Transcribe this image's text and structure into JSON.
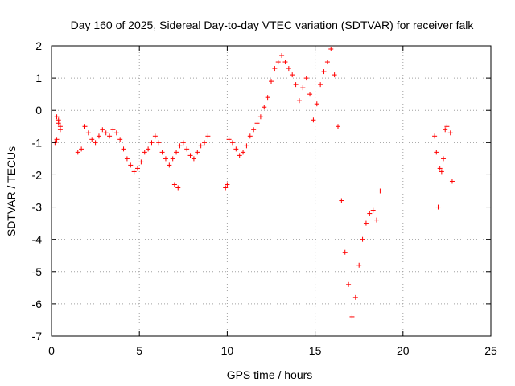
{
  "chart_data": {
    "type": "scatter",
    "title": "Day 160 of 2025, Sidereal Day-to-day VTEC variation (SDTVAR) for receiver falk",
    "xlabel": "GPS time / hours",
    "ylabel": "SDTVAR / TECUs",
    "xlim": [
      0,
      25
    ],
    "ylim": [
      -7,
      2
    ],
    "x_ticks": [
      "0",
      "5",
      "10",
      "15",
      "20",
      "25"
    ],
    "y_ticks": [
      "2",
      "1",
      "0",
      "-1",
      "-2",
      "-3",
      "-4",
      "-5",
      "-6",
      "-7"
    ],
    "grid": true,
    "marker": "+",
    "color": "#ff0000",
    "series": [
      {
        "x": [
          0.2,
          0.3,
          0.4,
          0.5,
          0.3,
          0.4,
          0.5,
          1.5,
          1.7,
          1.9,
          2.1,
          2.3,
          2.5,
          2.7,
          2.9,
          3.1,
          3.3,
          3.5,
          3.7,
          3.9,
          4.1,
          4.3,
          4.5,
          4.7,
          4.9,
          5.1,
          5.3,
          5.5,
          5.7,
          5.9,
          6.1,
          6.3,
          6.5,
          6.7,
          6.9,
          7.1,
          7.3,
          7.5,
          7.7,
          7.9,
          8.1,
          8.3,
          8.5,
          8.7,
          8.9,
          7.0,
          7.2,
          9.9,
          10.0,
          10.1,
          10.3,
          10.5,
          10.7,
          10.9,
          11.1,
          11.3,
          11.5,
          11.7,
          11.9,
          12.1,
          12.3,
          12.5,
          12.7,
          12.9,
          13.1,
          13.3,
          13.5,
          13.7,
          13.9,
          14.1,
          14.3,
          14.5,
          14.7,
          14.9,
          15.1,
          15.3,
          15.5,
          15.7,
          15.9,
          16.1,
          16.3,
          16.5,
          16.7,
          16.9,
          17.1,
          17.3,
          17.5,
          17.7,
          17.9,
          18.1,
          18.3,
          18.5,
          18.7,
          21.8,
          21.9,
          22.0,
          22.1,
          22.2,
          22.3,
          22.4,
          22.5,
          22.7,
          22.8
        ],
        "y": [
          -1.0,
          -0.2,
          -0.4,
          -0.6,
          -0.9,
          -0.3,
          -0.5,
          -1.3,
          -1.2,
          -0.5,
          -0.7,
          -0.9,
          -1.0,
          -0.8,
          -0.6,
          -0.7,
          -0.8,
          -0.6,
          -0.7,
          -0.9,
          -1.2,
          -1.5,
          -1.7,
          -1.9,
          -1.8,
          -1.6,
          -1.3,
          -1.2,
          -1.0,
          -0.8,
          -1.0,
          -1.3,
          -1.5,
          -1.7,
          -1.5,
          -1.3,
          -1.1,
          -1.0,
          -1.2,
          -1.4,
          -1.5,
          -1.3,
          -1.1,
          -1.0,
          -0.8,
          -2.3,
          -2.4,
          -2.4,
          -2.3,
          -0.9,
          -1.0,
          -1.2,
          -1.4,
          -1.3,
          -1.1,
          -0.8,
          -0.6,
          -0.4,
          -0.2,
          0.1,
          0.4,
          0.9,
          1.3,
          1.5,
          1.7,
          1.5,
          1.3,
          1.1,
          0.8,
          0.3,
          0.7,
          1.0,
          0.5,
          -0.3,
          0.2,
          0.8,
          1.2,
          1.5,
          1.9,
          1.1,
          -0.5,
          -2.8,
          -4.4,
          -5.4,
          -6.4,
          -5.8,
          -4.8,
          -4.0,
          -3.5,
          -3.2,
          -3.1,
          -3.4,
          -2.5,
          -0.8,
          -1.3,
          -3.0,
          -1.8,
          -1.9,
          -1.5,
          -0.6,
          -0.5,
          -0.7,
          -2.2
        ]
      }
    ]
  }
}
